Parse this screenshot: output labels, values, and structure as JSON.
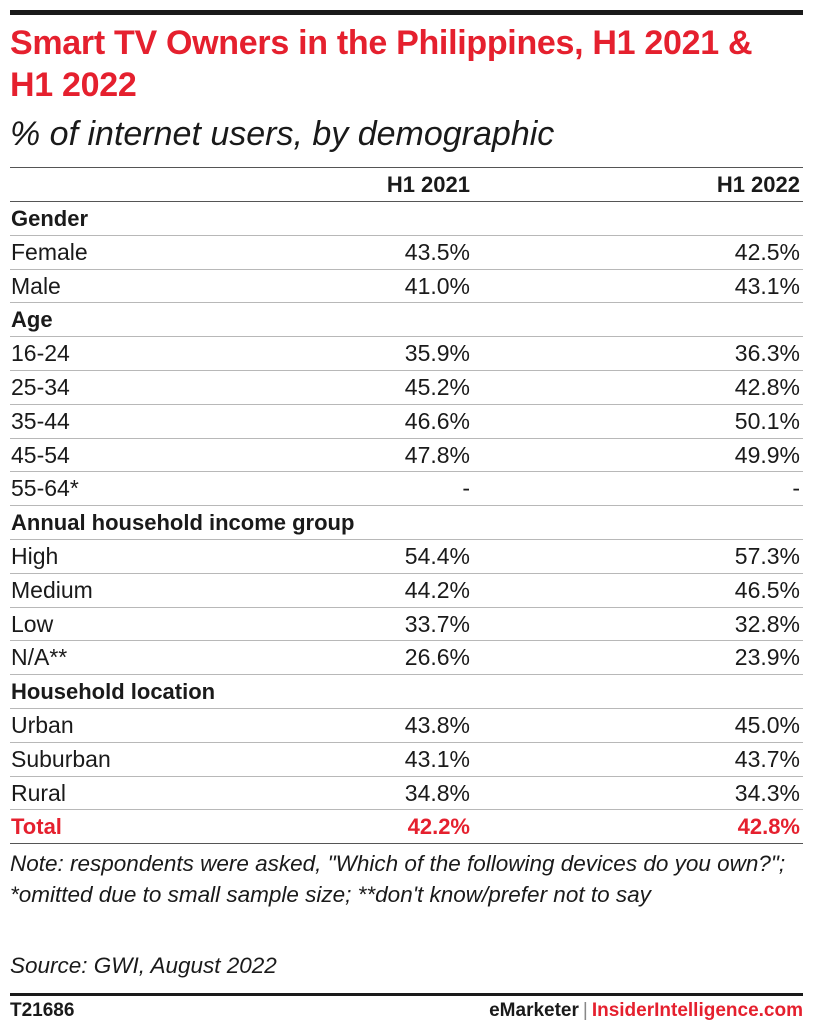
{
  "chart_data": {
    "type": "table",
    "title": "Smart TV Owners in the Philippines, H1 2021 & H1 2022",
    "subtitle": "% of internet users, by demographic",
    "columns": [
      "H1 2021",
      "H1 2022"
    ],
    "rows": [
      {
        "kind": "section",
        "label": "Gender"
      },
      {
        "kind": "data",
        "label": "Female",
        "values": [
          "43.5%",
          "42.5%"
        ]
      },
      {
        "kind": "data",
        "label": "Male",
        "values": [
          "41.0%",
          "43.1%"
        ]
      },
      {
        "kind": "section",
        "label": "Age"
      },
      {
        "kind": "data",
        "label": "16-24",
        "values": [
          "35.9%",
          "36.3%"
        ]
      },
      {
        "kind": "data",
        "label": "25-34",
        "values": [
          "45.2%",
          "42.8%"
        ]
      },
      {
        "kind": "data",
        "label": "35-44",
        "values": [
          "46.6%",
          "50.1%"
        ]
      },
      {
        "kind": "data",
        "label": "45-54",
        "values": [
          "47.8%",
          "49.9%"
        ]
      },
      {
        "kind": "data",
        "label": "55-64*",
        "values": [
          "-",
          "-"
        ]
      },
      {
        "kind": "section",
        "label": "Annual household income group"
      },
      {
        "kind": "data",
        "label": "High",
        "values": [
          "54.4%",
          "57.3%"
        ]
      },
      {
        "kind": "data",
        "label": "Medium",
        "values": [
          "44.2%",
          "46.5%"
        ]
      },
      {
        "kind": "data",
        "label": "Low",
        "values": [
          "33.7%",
          "32.8%"
        ]
      },
      {
        "kind": "data",
        "label": "N/A**",
        "values": [
          "26.6%",
          "23.9%"
        ]
      },
      {
        "kind": "section",
        "label": "Household location"
      },
      {
        "kind": "data",
        "label": "Urban",
        "values": [
          "43.8%",
          "45.0%"
        ]
      },
      {
        "kind": "data",
        "label": "Suburban",
        "values": [
          "43.1%",
          "43.7%"
        ]
      },
      {
        "kind": "data",
        "label": "Rural",
        "values": [
          "34.8%",
          "34.3%"
        ]
      },
      {
        "kind": "total",
        "label": "Total",
        "values": [
          "42.2%",
          "42.8%"
        ]
      }
    ],
    "note": "Note: respondents were asked, \"Which of the following devices do you own?\"; *omitted due to small sample size; **don't know/prefer not to say",
    "source": "Source: GWI, August 2022"
  },
  "footer": {
    "chart_id": "T21686",
    "brand": "eMarketer",
    "separator": "|",
    "brand2": "InsiderIntelligence.com"
  },
  "colors": {
    "accent": "#e5202e",
    "text": "#1a1a1a"
  }
}
